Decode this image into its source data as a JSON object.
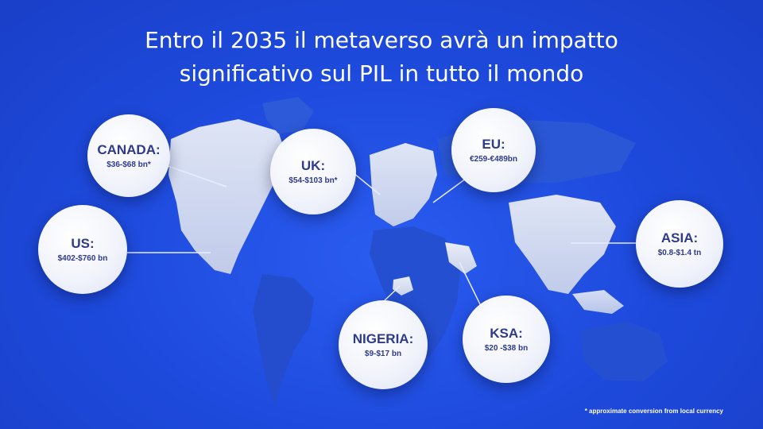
{
  "title": {
    "line1": "Entro il 2035 il metaverso avrà un impatto",
    "line2": "significativo sul PIL in tutto il mondo"
  },
  "regions": {
    "canada": {
      "label": "CANADA:",
      "value": "$36-$68 bn*"
    },
    "us": {
      "label": "US:",
      "value": "$402-$760 bn"
    },
    "uk": {
      "label": "UK:",
      "value": "$54-$103 bn*"
    },
    "eu": {
      "label": "EU:",
      "value": "€259-€489bn"
    },
    "asia": {
      "label": "ASIA:",
      "value": "$0.8-$1.4 tn"
    },
    "nigeria": {
      "label": "NIGERIA:",
      "value": "$9-$17 bn"
    },
    "ksa": {
      "label": "KSA:",
      "value": "$20 -$38 bn"
    }
  },
  "footnote": "* approximate conversion from local currency",
  "colors": {
    "background": "#1f4fe0",
    "bubble_text": "#2e3a8c",
    "title": "#ffffff"
  }
}
